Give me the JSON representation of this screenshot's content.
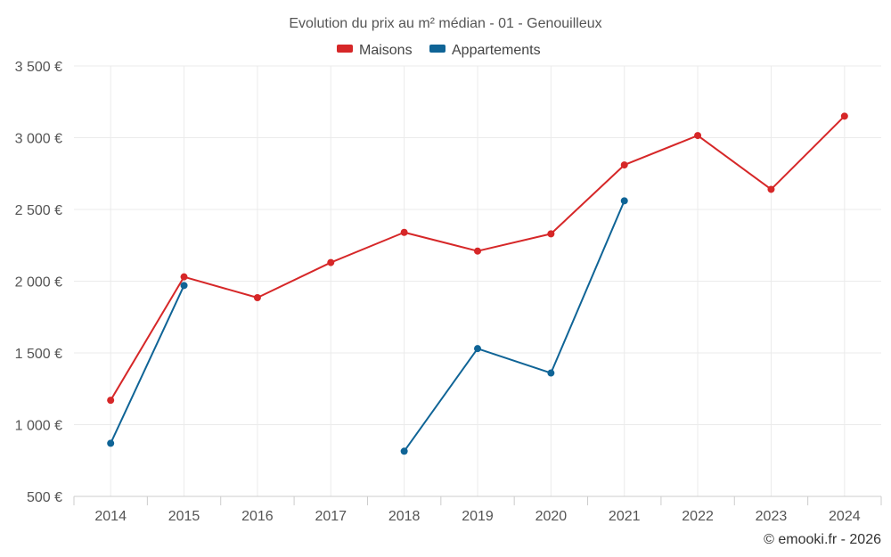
{
  "chart_data": {
    "type": "line",
    "title": "Evolution du prix au m² médian - 01 - Genouilleux",
    "categories": [
      "2014",
      "2015",
      "2016",
      "2017",
      "2018",
      "2019",
      "2020",
      "2021",
      "2022",
      "2023",
      "2024"
    ],
    "series": [
      {
        "name": "Maisons",
        "color": "#d62728",
        "values": [
          1170,
          2030,
          1885,
          2130,
          2340,
          2210,
          2330,
          2810,
          3015,
          2640,
          3150
        ]
      },
      {
        "name": "Appartements",
        "color": "#0f6496",
        "values": [
          870,
          1970,
          null,
          null,
          815,
          1530,
          1360,
          2560,
          null,
          null,
          null
        ]
      }
    ],
    "ylim": [
      500,
      3500
    ],
    "yticks": [
      500,
      1000,
      1500,
      2000,
      2500,
      3000,
      3500
    ],
    "ytick_labels": [
      "500 €",
      "1 000 €",
      "1 500 €",
      "2 000 €",
      "2 500 €",
      "3 000 €",
      "3 500 €"
    ],
    "xlabel": "",
    "ylabel": "",
    "grid": true,
    "legend_position": "top-center"
  },
  "credit": "© emooki.fr - 2026"
}
